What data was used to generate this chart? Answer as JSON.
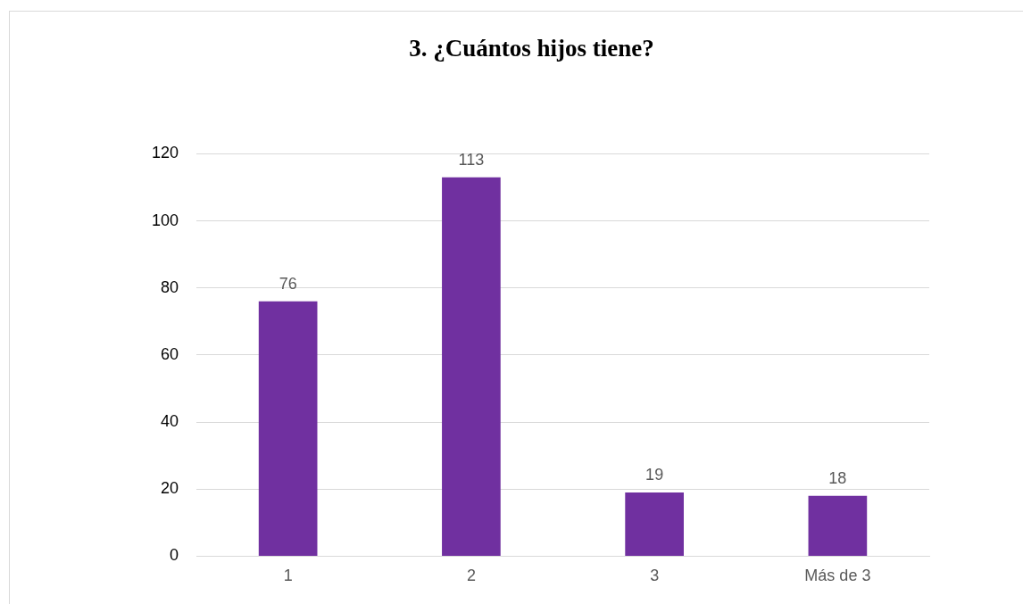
{
  "chart_data": {
    "type": "bar",
    "title": "3. ¿Cuántos hijos tiene?",
    "categories": [
      "1",
      "2",
      "3",
      "Más de 3"
    ],
    "values": [
      76,
      113,
      19,
      18
    ],
    "color": "#7030a0",
    "ylim": [
      0,
      120
    ],
    "yticks": [
      0,
      20,
      40,
      60,
      80,
      100,
      120
    ],
    "grid": "y",
    "data_labels": true,
    "legend": false
  }
}
